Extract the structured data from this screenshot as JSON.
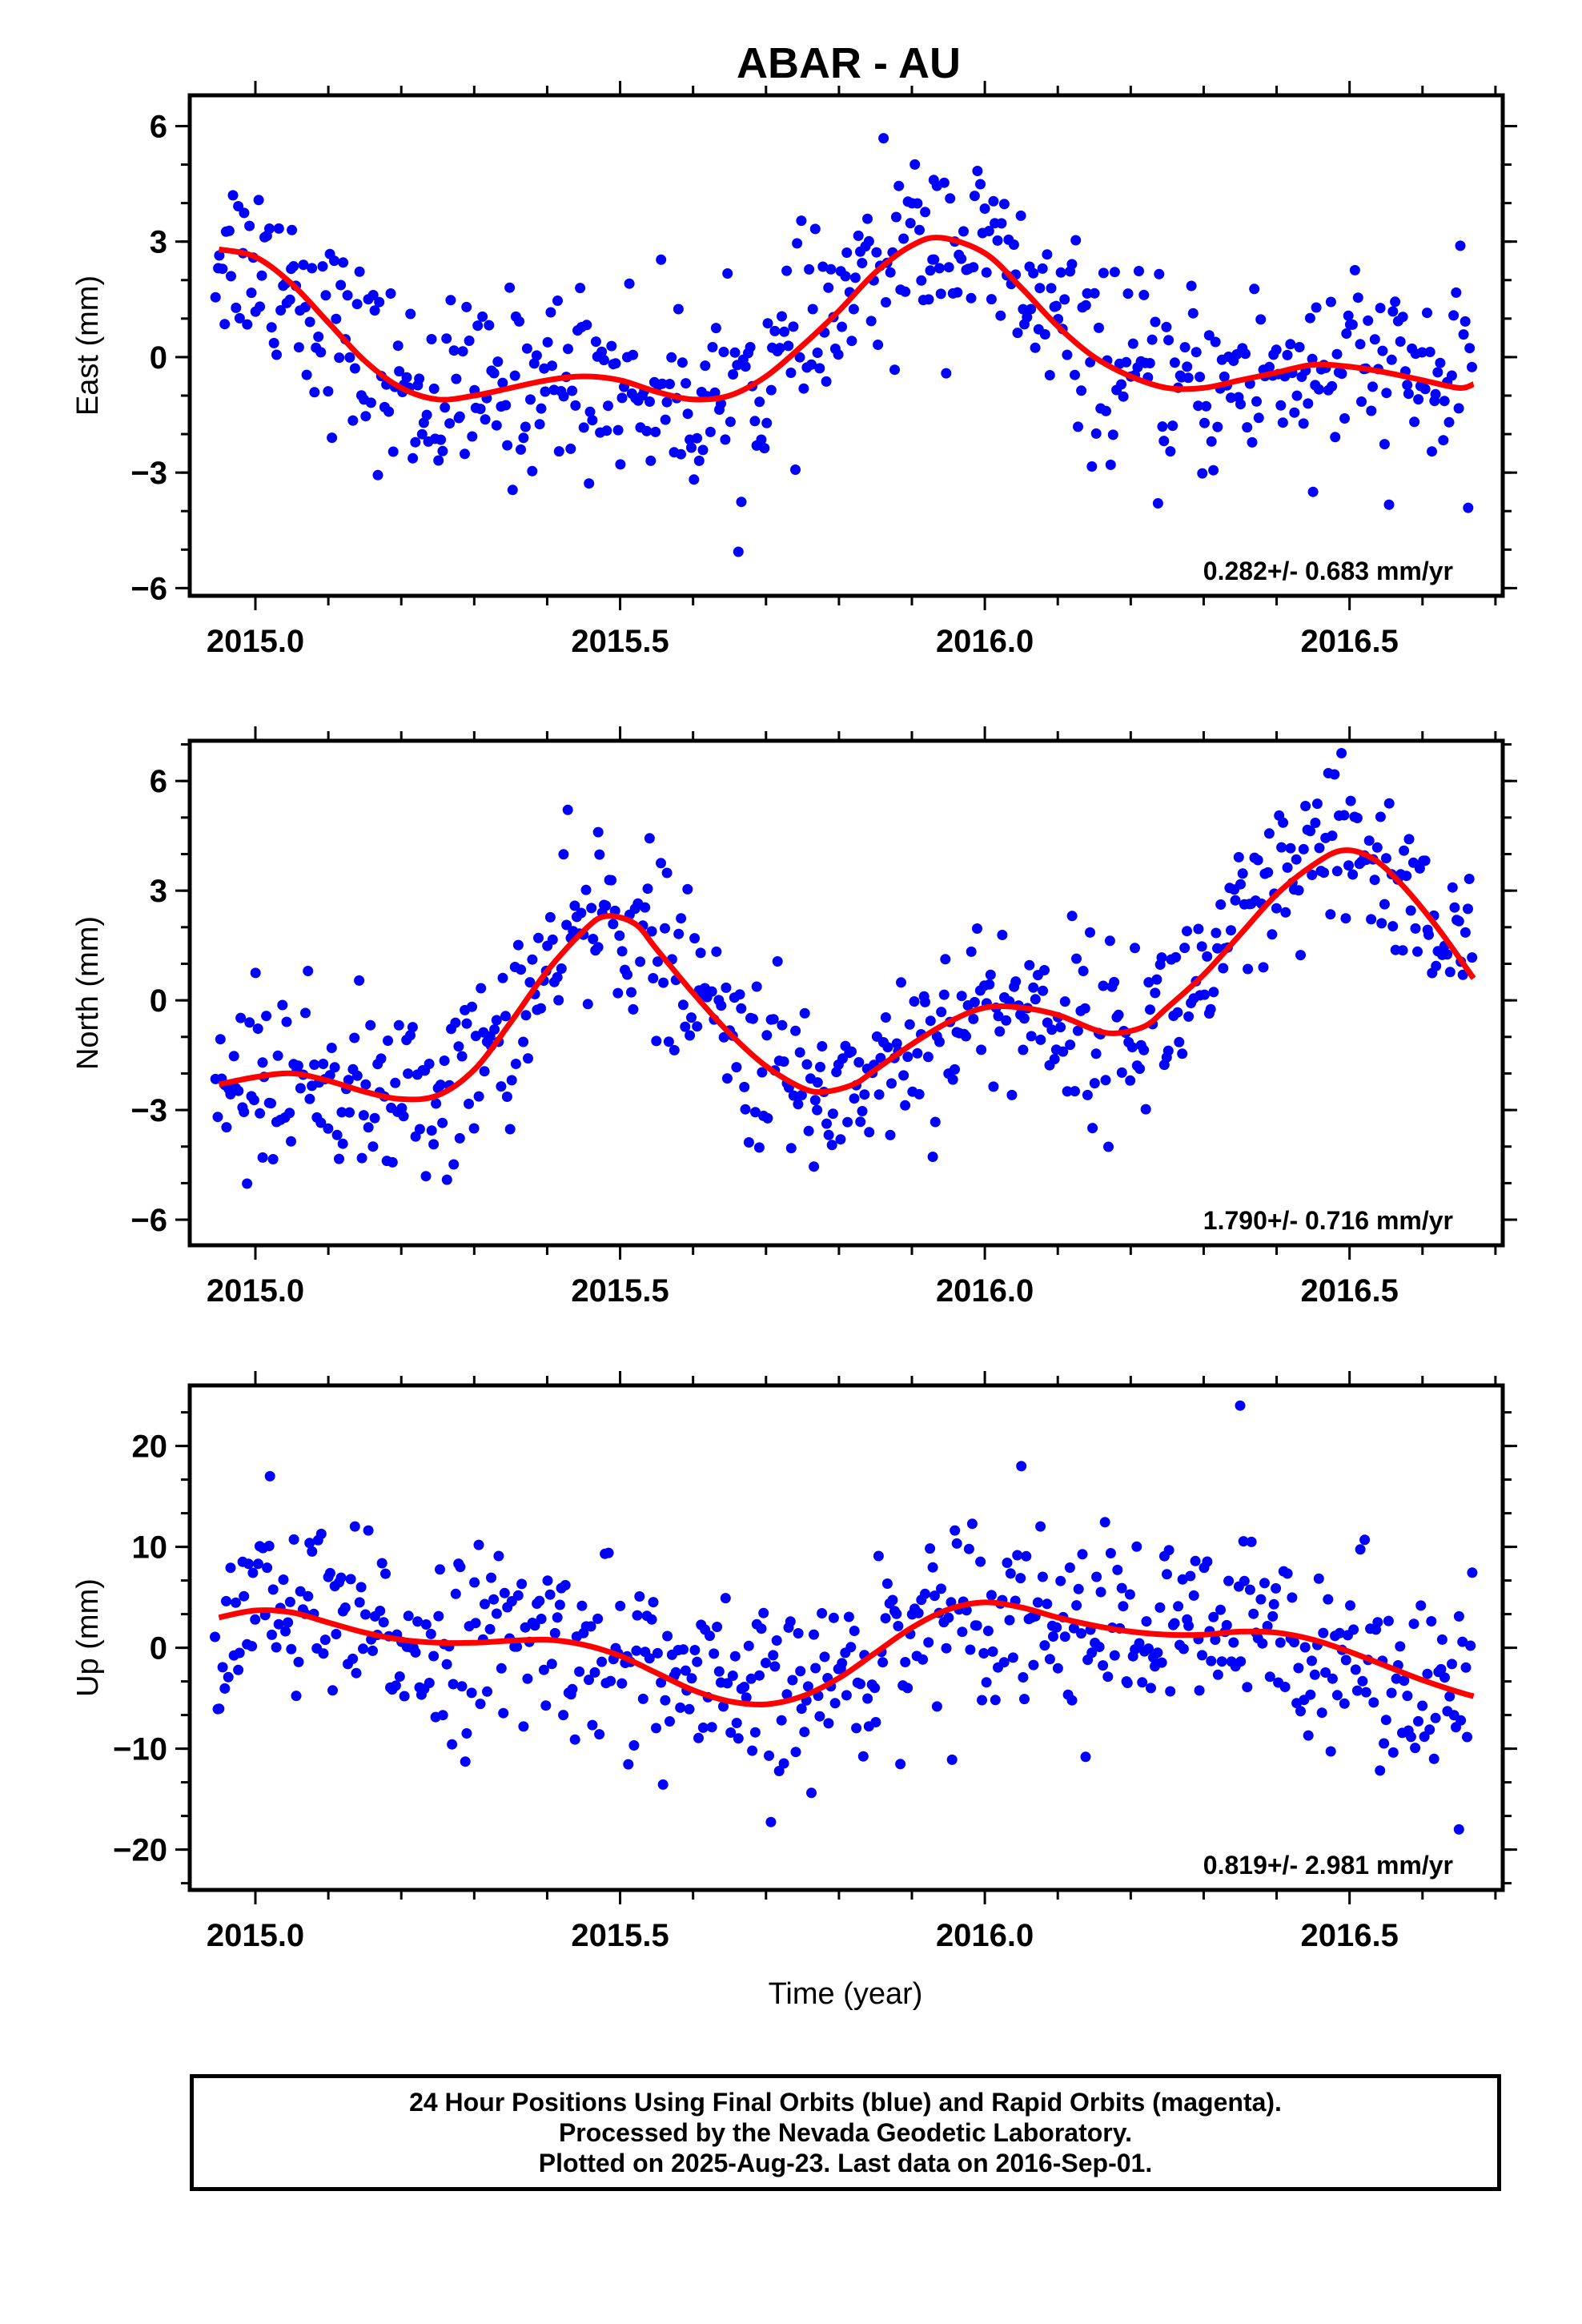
{
  "chart_data": {
    "title": "ABAR - AU",
    "xlabel": "Time (year)",
    "xlim": [
      2014.91,
      2016.71
    ],
    "xticks": [
      2015.0,
      2015.5,
      2016.0,
      2016.5
    ],
    "xtick_labels": [
      "2015.0",
      "2015.5",
      "2016.0",
      "2016.5"
    ],
    "series_colors": {
      "points": "#0000ff",
      "model": "#ff0000"
    },
    "panels": [
      {
        "type": "scatter",
        "ylabel": "East (mm)",
        "ylim": [
          -6.2,
          6.8
        ],
        "yticks": [
          6,
          3,
          0,
          -3,
          -6
        ],
        "ytick_labels": [
          "6",
          "3",
          "0",
          "−3",
          "−6"
        ],
        "rate": "0.282+/- 0.683 mm/yr",
        "trend": 0.282,
        "noise": 1.2,
        "anomalies": [
          {
            "x": 2015.05,
            "v": 3.3
          },
          {
            "x": 2015.93,
            "v": 4.6
          },
          {
            "x": 2016.45,
            "v": -3.5
          }
        ],
        "curve": [
          [
            2014.95,
            2.8
          ],
          [
            2015.0,
            2.6
          ],
          [
            2015.05,
            1.9
          ],
          [
            2015.1,
            0.9
          ],
          [
            2015.15,
            -0.1
          ],
          [
            2015.2,
            -0.8
          ],
          [
            2015.25,
            -1.1
          ],
          [
            2015.3,
            -1.0
          ],
          [
            2015.35,
            -0.8
          ],
          [
            2015.4,
            -0.6
          ],
          [
            2015.45,
            -0.5
          ],
          [
            2015.5,
            -0.6
          ],
          [
            2015.55,
            -0.9
          ],
          [
            2015.6,
            -1.1
          ],
          [
            2015.65,
            -1.0
          ],
          [
            2015.7,
            -0.5
          ],
          [
            2015.75,
            0.3
          ],
          [
            2015.8,
            1.2
          ],
          [
            2015.85,
            2.2
          ],
          [
            2015.9,
            2.9
          ],
          [
            2015.94,
            3.1
          ],
          [
            2016.0,
            2.7
          ],
          [
            2016.05,
            1.8
          ],
          [
            2016.1,
            0.8
          ],
          [
            2016.15,
            0.0
          ],
          [
            2016.2,
            -0.5
          ],
          [
            2016.25,
            -0.8
          ],
          [
            2016.3,
            -0.8
          ],
          [
            2016.35,
            -0.6
          ],
          [
            2016.4,
            -0.4
          ],
          [
            2016.45,
            -0.2
          ],
          [
            2016.5,
            -0.25
          ],
          [
            2016.55,
            -0.4
          ],
          [
            2016.6,
            -0.6
          ],
          [
            2016.65,
            -0.8
          ],
          [
            2016.67,
            -0.7
          ]
        ]
      },
      {
        "type": "scatter",
        "ylabel": "North (mm)",
        "ylim": [
          -6.7,
          7.1
        ],
        "yticks": [
          6,
          3,
          0,
          -3,
          -6
        ],
        "ytick_labels": [
          "6",
          "3",
          "0",
          "−3",
          "−6"
        ],
        "rate": "1.790+/- 0.716 mm/yr",
        "trend": 1.79,
        "noise": 1.2,
        "anomalies": [
          {
            "x": 2015.47,
            "v": 4.6
          },
          {
            "x": 2015.01,
            "v": -4.3
          },
          {
            "x": 2015.77,
            "v": -3.0
          }
        ],
        "curve": [
          [
            2014.95,
            -2.3
          ],
          [
            2015.0,
            -2.1
          ],
          [
            2015.05,
            -2.0
          ],
          [
            2015.1,
            -2.2
          ],
          [
            2015.15,
            -2.5
          ],
          [
            2015.2,
            -2.7
          ],
          [
            2015.25,
            -2.6
          ],
          [
            2015.3,
            -1.9
          ],
          [
            2015.35,
            -0.6
          ],
          [
            2015.4,
            0.8
          ],
          [
            2015.45,
            1.9
          ],
          [
            2015.48,
            2.3
          ],
          [
            2015.52,
            2.1
          ],
          [
            2015.55,
            1.4
          ],
          [
            2015.6,
            0.2
          ],
          [
            2015.65,
            -0.9
          ],
          [
            2015.7,
            -1.8
          ],
          [
            2015.75,
            -2.4
          ],
          [
            2015.78,
            -2.5
          ],
          [
            2015.82,
            -2.3
          ],
          [
            2015.85,
            -1.9
          ],
          [
            2015.9,
            -1.2
          ],
          [
            2015.95,
            -0.6
          ],
          [
            2016.0,
            -0.2
          ],
          [
            2016.05,
            -0.2
          ],
          [
            2016.1,
            -0.4
          ],
          [
            2016.15,
            -0.8
          ],
          [
            2016.18,
            -0.9
          ],
          [
            2016.22,
            -0.7
          ],
          [
            2016.25,
            -0.2
          ],
          [
            2016.3,
            0.7
          ],
          [
            2016.35,
            1.8
          ],
          [
            2016.4,
            2.9
          ],
          [
            2016.45,
            3.7
          ],
          [
            2016.49,
            4.1
          ],
          [
            2016.53,
            3.9
          ],
          [
            2016.57,
            3.2
          ],
          [
            2016.62,
            2.0
          ],
          [
            2016.67,
            0.6
          ]
        ]
      },
      {
        "type": "scatter",
        "ylabel": "Up (mm)",
        "ylim": [
          -24,
          26
        ],
        "yticks": [
          20,
          10,
          0,
          -10,
          -20
        ],
        "ytick_labels": [
          "20",
          "10",
          "0",
          "−10",
          "−20"
        ],
        "rate": "0.819+/- 2.981 mm/yr",
        "trend": 0.819,
        "noise": 4.5,
        "anomalies": [
          {
            "x": 2016.35,
            "v": 24.0
          },
          {
            "x": 2016.05,
            "v": 18.0
          },
          {
            "x": 2016.65,
            "v": -18.0
          },
          {
            "x": 2015.02,
            "v": 17.0
          }
        ],
        "curve": [
          [
            2014.95,
            3.0
          ],
          [
            2015.0,
            3.7
          ],
          [
            2015.05,
            3.5
          ],
          [
            2015.1,
            2.5
          ],
          [
            2015.15,
            1.5
          ],
          [
            2015.2,
            0.8
          ],
          [
            2015.25,
            0.5
          ],
          [
            2015.3,
            0.5
          ],
          [
            2015.35,
            0.7
          ],
          [
            2015.4,
            0.8
          ],
          [
            2015.45,
            0.3
          ],
          [
            2015.5,
            -0.8
          ],
          [
            2015.55,
            -2.5
          ],
          [
            2015.6,
            -4.2
          ],
          [
            2015.65,
            -5.3
          ],
          [
            2015.7,
            -5.6
          ],
          [
            2015.75,
            -4.8
          ],
          [
            2015.8,
            -3.0
          ],
          [
            2015.85,
            -0.5
          ],
          [
            2015.9,
            2.0
          ],
          [
            2015.95,
            3.8
          ],
          [
            2016.0,
            4.5
          ],
          [
            2016.05,
            4.0
          ],
          [
            2016.1,
            3.0
          ],
          [
            2016.15,
            2.2
          ],
          [
            2016.2,
            1.6
          ],
          [
            2016.25,
            1.3
          ],
          [
            2016.3,
            1.3
          ],
          [
            2016.35,
            1.6
          ],
          [
            2016.4,
            1.5
          ],
          [
            2016.45,
            0.8
          ],
          [
            2016.5,
            -0.4
          ],
          [
            2016.55,
            -1.8
          ],
          [
            2016.6,
            -3.2
          ],
          [
            2016.65,
            -4.4
          ],
          [
            2016.67,
            -4.8
          ]
        ]
      }
    ]
  },
  "footer": {
    "line1": "24 Hour Positions Using Final Orbits (blue) and Rapid Orbits (magenta).",
    "line2": "Processed by the Nevada Geodetic Laboratory.",
    "line3": "Plotted on 2025-Aug-23. Last data on 2016-Sep-01."
  }
}
